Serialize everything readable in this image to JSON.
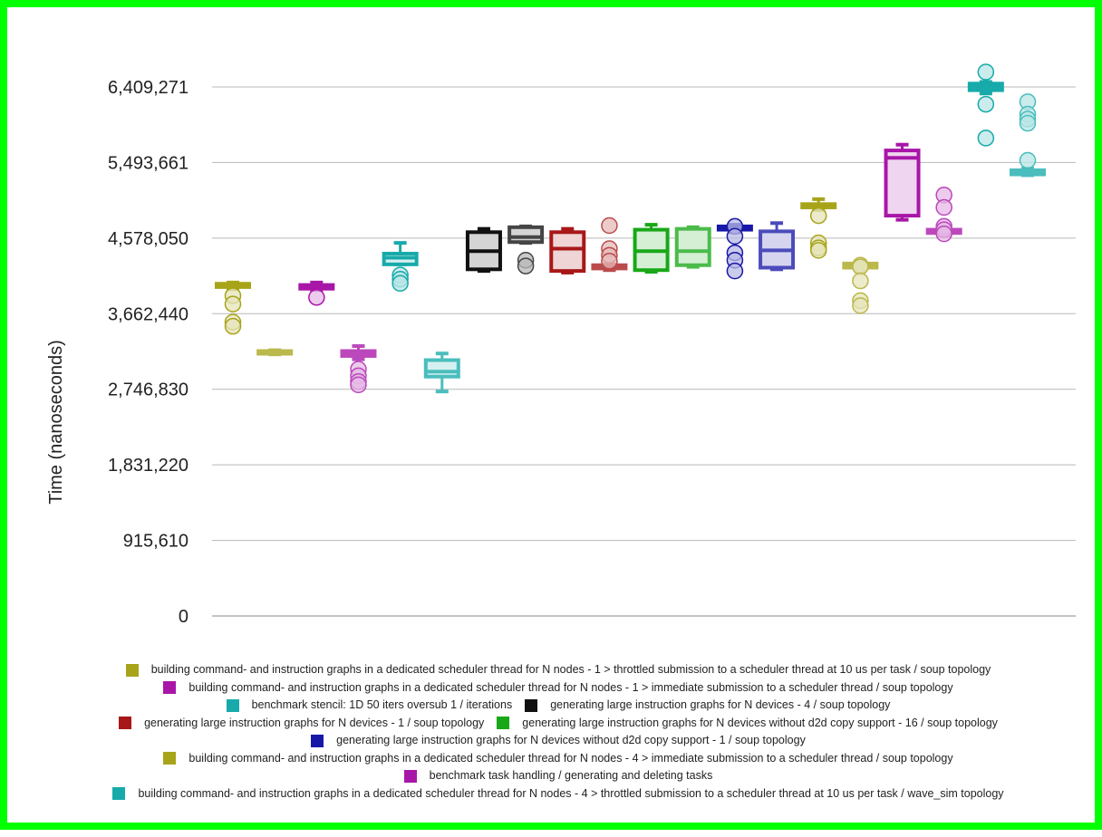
{
  "chart_data": {
    "type": "boxplot",
    "title": "",
    "xlabel": "",
    "ylabel": "Time (nanoseconds)",
    "ylim": [
      0,
      6409271
    ],
    "yticks": [
      0,
      915610,
      1831220,
      2746830,
      3662440,
      4578050,
      5493661,
      6409271
    ],
    "ytick_labels": [
      "0",
      "915,610",
      "1,831,220",
      "2,746,830",
      "3,662,440",
      "4,578,050",
      "5,493,661",
      "6,409,271"
    ],
    "grid": true,
    "legend_position": "bottom",
    "series": [
      {
        "name": "building command- and instruction graphs in a dedicated scheduler thread for N nodes - 1 > throttled submission to a scheduler thread at 10 us per task / soup topology",
        "color": "#a8a41a",
        "boxes": [
          {
            "min": 3960000,
            "q1": 3985000,
            "median": 3995000,
            "q3": 4025000,
            "max": 4040000,
            "outliers": [
              3880000,
              3780000,
              3560000,
              3510000
            ]
          },
          {
            "min": 3170000,
            "q1": 3185000,
            "median": 3195000,
            "q3": 3210000,
            "max": 3220000,
            "outliers": []
          }
        ]
      },
      {
        "name": "building command- and instruction graphs in a dedicated scheduler thread for N nodes - 1 > immediate submission to a scheduler thread / soup topology",
        "color": "#a816a8",
        "boxes": [
          {
            "min": 3950000,
            "q1": 3965000,
            "median": 3980000,
            "q3": 4010000,
            "max": 4040000,
            "outliers": [
              3860000
            ]
          },
          {
            "min": 3110000,
            "q1": 3150000,
            "median": 3180000,
            "q3": 3210000,
            "max": 3270000,
            "outliers": [
              2990000,
              2910000,
              2840000,
              2800000
            ]
          }
        ]
      },
      {
        "name": "benchmark stencil: 1D  50 iters oversub 1 / iterations",
        "color": "#18aaaa",
        "boxes": [
          {
            "min": 4260000,
            "q1": 4260000,
            "median": 4340000,
            "q3": 4390000,
            "max": 4520000,
            "outliers": [
              4130000,
              4080000,
              4030000
            ]
          },
          {
            "min": 2720000,
            "q1": 2900000,
            "median": 2960000,
            "q3": 3100000,
            "max": 3180000,
            "outliers": []
          }
        ]
      },
      {
        "name": "generating large instruction graphs for N devices - 4 / soup topology",
        "color": "#111111",
        "boxes": [
          {
            "min": 4180000,
            "q1": 4200000,
            "median": 4420000,
            "q3": 4650000,
            "max": 4690000,
            "outliers": []
          },
          {
            "min": 4520000,
            "q1": 4530000,
            "median": 4590000,
            "q3": 4710000,
            "max": 4720000,
            "outliers": [
              4310000,
              4240000
            ]
          }
        ]
      },
      {
        "name": "generating large instruction graphs for N devices - 1 / soup topology",
        "color": "#a81818",
        "boxes": [
          {
            "min": 4160000,
            "q1": 4180000,
            "median": 4450000,
            "q3": 4650000,
            "max": 4690000,
            "outliers": []
          },
          {
            "min": 4190000,
            "q1": 4210000,
            "median": 4230000,
            "q3": 4250000,
            "max": 4260000,
            "outliers": [
              4730000,
              4450000,
              4370000,
              4300000
            ]
          }
        ]
      },
      {
        "name": "generating large instruction graphs for N devices without d2d copy support - 16 / soup topology",
        "color": "#18a818",
        "boxes": [
          {
            "min": 4170000,
            "q1": 4190000,
            "median": 4420000,
            "q3": 4680000,
            "max": 4740000,
            "outliers": []
          },
          {
            "min": 4230000,
            "q1": 4250000,
            "median": 4420000,
            "q3": 4690000,
            "max": 4710000,
            "outliers": []
          }
        ]
      },
      {
        "name": "generating large instruction graphs for N devices without d2d copy support - 1 / soup topology",
        "color": "#1818a8",
        "boxes": [
          {
            "min": 4650000,
            "q1": 4680000,
            "median": 4700000,
            "q3": 4720000,
            "max": 4740000,
            "outliers": [
              4720000,
              4600000,
              4400000,
              4310000,
              4180000
            ]
          },
          {
            "min": 4200000,
            "q1": 4220000,
            "median": 4430000,
            "q3": 4660000,
            "max": 4760000,
            "outliers": []
          }
        ]
      },
      {
        "name": "building command- and instruction graphs in a dedicated scheduler thread for N nodes - 4 > immediate submission to a scheduler thread / soup topology",
        "color": "#a8a41a",
        "boxes": [
          {
            "min": 4920000,
            "q1": 4950000,
            "median": 4970000,
            "q3": 4990000,
            "max": 5050000,
            "outliers": [
              4850000,
              4520000,
              4460000,
              4430000
            ]
          },
          {
            "min": 4200000,
            "q1": 4220000,
            "median": 4240000,
            "q3": 4270000,
            "max": 4300000,
            "outliers": [
              4250000,
              4230000,
              4060000,
              3820000,
              3760000
            ]
          }
        ]
      },
      {
        "name": "benchmark task handling / generating and deleting tasks",
        "color": "#a816a8",
        "boxes": [
          {
            "min": 4800000,
            "q1": 4850000,
            "median": 5550000,
            "q3": 5640000,
            "max": 5710000,
            "outliers": []
          },
          {
            "min": 4610000,
            "q1": 4640000,
            "median": 4660000,
            "q3": 4680000,
            "max": 4700000,
            "outliers": [
              5100000,
              4950000,
              4720000,
              4680000,
              4630000
            ]
          }
        ]
      },
      {
        "name": "building command- and instruction graphs in a dedicated scheduler thread for N nodes - 4 > throttled submission to a scheduler thread at 10 us per task / wave_sim topology",
        "color": "#18aaaa",
        "boxes": [
          {
            "min": 6330000,
            "q1": 6370000,
            "median": 6410000,
            "q3": 6450000,
            "max": 6470000,
            "outliers": [
              6590000,
              6200000,
              5790000
            ]
          },
          {
            "min": 5340000,
            "q1": 5350000,
            "median": 5370000,
            "q3": 5400000,
            "max": 5420000,
            "outliers": [
              6230000,
              6080000,
              6020000,
              5970000,
              5520000
            ]
          }
        ]
      }
    ]
  },
  "legend": {
    "rows": [
      [
        {
          "series": 0,
          "label": "building command- and instruction graphs in a dedicated scheduler thread for N nodes - 1 > throttled submission to a scheduler thread at 10 us per task / soup topology"
        }
      ],
      [
        {
          "series": 1,
          "label": "building command- and instruction graphs in a dedicated scheduler thread for N nodes - 1 > immediate submission to a scheduler thread / soup topology"
        }
      ],
      [
        {
          "series": 2,
          "label": "benchmark stencil: 1D  50 iters oversub 1 / iterations"
        },
        {
          "series": 3,
          "label": "generating large instruction graphs for N devices - 4 / soup topology"
        }
      ],
      [
        {
          "series": 4,
          "label": "generating large instruction graphs for N devices - 1 / soup topology"
        },
        {
          "series": 5,
          "label": "generating large instruction graphs for N devices without d2d copy support - 16 / soup topology"
        }
      ],
      [
        {
          "series": 6,
          "label": "generating large instruction graphs for N devices without d2d copy support - 1 / soup topology"
        }
      ],
      [
        {
          "series": 7,
          "label": "building command- and instruction graphs in a dedicated scheduler thread for N nodes - 4 > immediate submission to a scheduler thread / soup topology"
        }
      ],
      [
        {
          "series": 8,
          "label": "benchmark task handling / generating and deleting tasks"
        }
      ],
      [
        {
          "series": 9,
          "label": "building command- and instruction graphs in a dedicated scheduler thread for N nodes - 4 > throttled submission to a scheduler thread at 10 us per task / wave_sim topology"
        }
      ]
    ]
  }
}
